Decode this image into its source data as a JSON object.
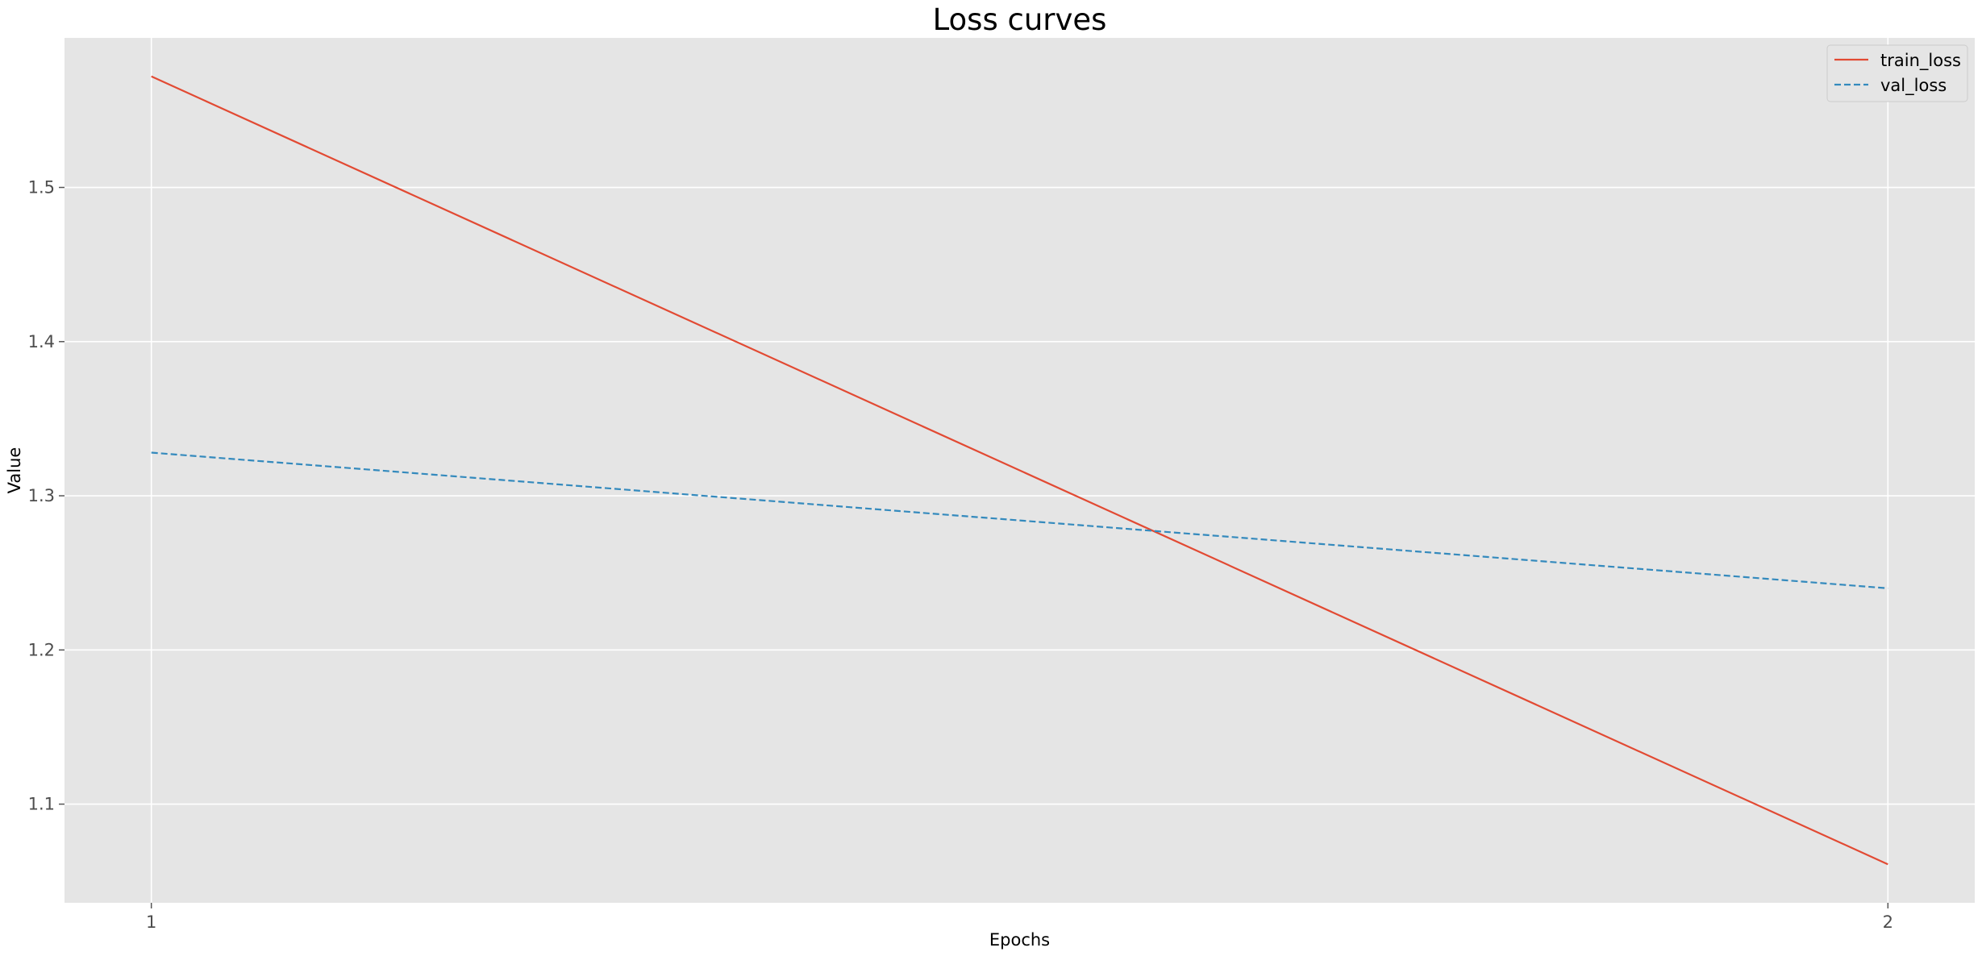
{
  "chart_data": {
    "type": "line",
    "title": "Loss curves",
    "xlabel": "Epochs",
    "ylabel": "Value",
    "x": [
      1,
      2
    ],
    "x_ticks": [
      1,
      2
    ],
    "y_ticks": [
      1.1,
      1.2,
      1.3,
      1.4,
      1.5
    ],
    "xlim": [
      0.95,
      2.05
    ],
    "ylim": [
      1.036,
      1.597
    ],
    "grid": true,
    "legend_position": "top-right",
    "series": [
      {
        "name": "train_loss",
        "values": [
          1.572,
          1.061
        ],
        "color": "#e24a33",
        "line_style": "solid"
      },
      {
        "name": "val_loss",
        "values": [
          1.328,
          1.24
        ],
        "color": "#348abd",
        "line_style": "dashed"
      }
    ]
  },
  "style": {
    "plot_background": "#e5e5e5",
    "grid_color": "#ffffff",
    "page_background": "#ffffff"
  }
}
